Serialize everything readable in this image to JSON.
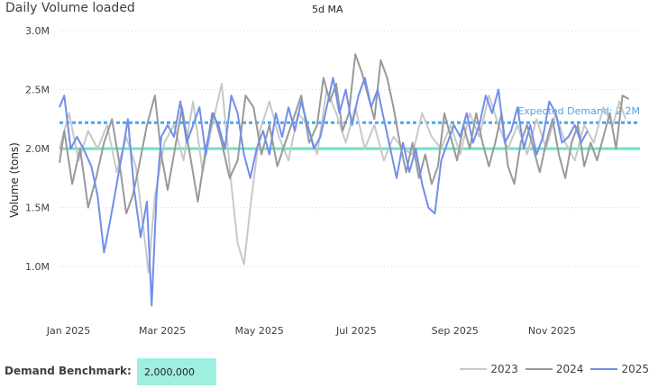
{
  "title": "Daily Volume loaded",
  "subtitle": "5d MA",
  "benchmark": {
    "label": "Demand Benchmark:",
    "value": "2,000,000"
  },
  "colors": {
    "s2023": "#c8c8c8",
    "s2024": "#999999",
    "s2025": "#6f8fea",
    "expected": "#4aa5ea",
    "benchmark": "#6fe0c8",
    "grid": "#d8d8d8"
  },
  "chart_data": {
    "type": "line",
    "ylabel": "Volume (tons)",
    "ylim": [
      0.65,
      3.0
    ],
    "y_unit": "M",
    "y_ticks": [
      {
        "v": 3.0,
        "label": "3.0M"
      },
      {
        "v": 2.5,
        "label": "2.5M"
      },
      {
        "v": 2.0,
        "label": "2.0M"
      },
      {
        "v": 1.5,
        "label": "1.5M"
      },
      {
        "v": 1.0,
        "label": "1.0M"
      }
    ],
    "x_ticks": [
      {
        "doy": 0,
        "label": "Jan 2025"
      },
      {
        "doy": 59,
        "label": "Mar 2025"
      },
      {
        "doy": 120,
        "label": "May 2025"
      },
      {
        "doy": 181,
        "label": "Jul 2025"
      },
      {
        "doy": 243,
        "label": "Sep 2025"
      },
      {
        "doy": 304,
        "label": "Nov 2025"
      }
    ],
    "grid": true,
    "reference_lines": [
      {
        "name": "Expected Demand",
        "label": "Expected Demand: 2.2M",
        "value": 2.22,
        "style": "dashed"
      },
      {
        "name": "Demand Benchmark",
        "value": 2.0,
        "style": "solid"
      }
    ],
    "legend": {
      "position": "bottom-right"
    },
    "series": [
      {
        "name": "2023",
        "color": "#c8c8c8",
        "points": [
          [
            0,
            2.0
          ],
          [
            6,
            2.3
          ],
          [
            12,
            1.9
          ],
          [
            18,
            2.15
          ],
          [
            24,
            2.0
          ],
          [
            30,
            2.2
          ],
          [
            36,
            1.8
          ],
          [
            42,
            2.1
          ],
          [
            48,
            1.85
          ],
          [
            53,
            1.3
          ],
          [
            56,
            0.95
          ],
          [
            60,
            1.6
          ],
          [
            66,
            2.05
          ],
          [
            72,
            2.2
          ],
          [
            78,
            1.9
          ],
          [
            84,
            2.4
          ],
          [
            90,
            1.8
          ],
          [
            96,
            2.2
          ],
          [
            102,
            2.55
          ],
          [
            108,
            1.7
          ],
          [
            112,
            1.2
          ],
          [
            116,
            1.02
          ],
          [
            120,
            1.5
          ],
          [
            126,
            2.15
          ],
          [
            132,
            2.4
          ],
          [
            138,
            2.1
          ],
          [
            144,
            1.9
          ],
          [
            150,
            2.3
          ],
          [
            156,
            2.2
          ],
          [
            162,
            1.95
          ],
          [
            168,
            2.5
          ],
          [
            174,
            2.3
          ],
          [
            180,
            2.05
          ],
          [
            186,
            2.35
          ],
          [
            192,
            2.0
          ],
          [
            198,
            2.2
          ],
          [
            204,
            1.9
          ],
          [
            210,
            2.1
          ],
          [
            216,
            2.0
          ],
          [
            222,
            1.95
          ],
          [
            228,
            2.3
          ],
          [
            234,
            2.1
          ],
          [
            240,
            2.0
          ],
          [
            246,
            2.2
          ],
          [
            252,
            1.95
          ],
          [
            258,
            2.3
          ],
          [
            264,
            2.1
          ],
          [
            270,
            2.45
          ],
          [
            276,
            2.2
          ],
          [
            282,
            2.0
          ],
          [
            288,
            2.2
          ],
          [
            294,
            1.95
          ],
          [
            300,
            2.25
          ],
          [
            306,
            2.0
          ],
          [
            312,
            2.3
          ],
          [
            318,
            2.05
          ],
          [
            324,
            1.9
          ],
          [
            330,
            2.2
          ],
          [
            336,
            2.05
          ],
          [
            342,
            2.35
          ],
          [
            348,
            2.2
          ],
          [
            352,
            2.4
          ],
          [
            356,
            2.25
          ]
        ]
      },
      {
        "name": "2024",
        "color": "#999999",
        "points": [
          [
            0,
            1.88
          ],
          [
            3,
            2.15
          ],
          [
            8,
            1.7
          ],
          [
            13,
            2.0
          ],
          [
            18,
            1.5
          ],
          [
            23,
            1.75
          ],
          [
            28,
            2.05
          ],
          [
            33,
            2.25
          ],
          [
            38,
            1.85
          ],
          [
            42,
            1.45
          ],
          [
            46,
            1.6
          ],
          [
            50,
            1.85
          ],
          [
            55,
            2.2
          ],
          [
            60,
            2.45
          ],
          [
            64,
            1.95
          ],
          [
            68,
            1.65
          ],
          [
            72,
            1.95
          ],
          [
            77,
            2.35
          ],
          [
            82,
            1.95
          ],
          [
            87,
            1.55
          ],
          [
            92,
            2.0
          ],
          [
            97,
            2.3
          ],
          [
            102,
            2.05
          ],
          [
            107,
            1.75
          ],
          [
            112,
            1.9
          ],
          [
            117,
            2.45
          ],
          [
            122,
            2.35
          ],
          [
            127,
            1.95
          ],
          [
            132,
            2.2
          ],
          [
            137,
            1.85
          ],
          [
            142,
            2.05
          ],
          [
            147,
            2.25
          ],
          [
            152,
            2.45
          ],
          [
            157,
            2.05
          ],
          [
            162,
            2.2
          ],
          [
            166,
            2.6
          ],
          [
            170,
            2.4
          ],
          [
            174,
            2.55
          ],
          [
            178,
            2.15
          ],
          [
            182,
            2.3
          ],
          [
            186,
            2.8
          ],
          [
            190,
            2.65
          ],
          [
            194,
            2.45
          ],
          [
            198,
            2.25
          ],
          [
            202,
            2.75
          ],
          [
            206,
            2.6
          ],
          [
            210,
            2.35
          ],
          [
            214,
            2.05
          ],
          [
            218,
            1.8
          ],
          [
            222,
            2.05
          ],
          [
            226,
            1.75
          ],
          [
            230,
            1.95
          ],
          [
            234,
            1.7
          ],
          [
            238,
            1.85
          ],
          [
            242,
            2.3
          ],
          [
            246,
            2.1
          ],
          [
            250,
            1.9
          ],
          [
            254,
            2.2
          ],
          [
            258,
            2.0
          ],
          [
            262,
            2.3
          ],
          [
            266,
            2.05
          ],
          [
            270,
            1.85
          ],
          [
            274,
            2.05
          ],
          [
            278,
            2.3
          ],
          [
            282,
            1.85
          ],
          [
            286,
            1.7
          ],
          [
            290,
            2.05
          ],
          [
            294,
            2.2
          ],
          [
            298,
            2.0
          ],
          [
            302,
            1.8
          ],
          [
            306,
            2.05
          ],
          [
            310,
            2.25
          ],
          [
            314,
            1.95
          ],
          [
            318,
            1.75
          ],
          [
            322,
            2.05
          ],
          [
            326,
            2.2
          ],
          [
            330,
            1.85
          ],
          [
            334,
            2.05
          ],
          [
            338,
            1.9
          ],
          [
            342,
            2.1
          ],
          [
            346,
            2.3
          ],
          [
            350,
            2.0
          ],
          [
            354,
            2.45
          ],
          [
            358,
            2.42
          ]
        ]
      },
      {
        "name": "2025",
        "color": "#6f8fea",
        "points": [
          [
            0,
            2.35
          ],
          [
            3,
            2.45
          ],
          [
            7,
            2.0
          ],
          [
            11,
            2.1
          ],
          [
            15,
            2.0
          ],
          [
            20,
            1.85
          ],
          [
            24,
            1.6
          ],
          [
            28,
            1.12
          ],
          [
            32,
            1.4
          ],
          [
            36,
            1.7
          ],
          [
            40,
            2.0
          ],
          [
            43,
            2.25
          ],
          [
            47,
            1.65
          ],
          [
            51,
            1.25
          ],
          [
            55,
            1.55
          ],
          [
            58,
            0.67
          ],
          [
            61,
            1.6
          ],
          [
            64,
            2.1
          ],
          [
            68,
            2.2
          ],
          [
            72,
            2.1
          ],
          [
            76,
            2.4
          ],
          [
            80,
            2.05
          ],
          [
            84,
            2.2
          ],
          [
            88,
            2.35
          ],
          [
            92,
            1.95
          ],
          [
            96,
            2.3
          ],
          [
            100,
            2.2
          ],
          [
            104,
            2.0
          ],
          [
            108,
            2.45
          ],
          [
            112,
            2.3
          ],
          [
            116,
            1.95
          ],
          [
            120,
            1.75
          ],
          [
            124,
            2.0
          ],
          [
            128,
            2.15
          ],
          [
            132,
            1.95
          ],
          [
            136,
            2.3
          ],
          [
            140,
            2.1
          ],
          [
            144,
            2.35
          ],
          [
            148,
            2.15
          ],
          [
            152,
            2.4
          ],
          [
            156,
            2.2
          ],
          [
            160,
            2.0
          ],
          [
            164,
            2.1
          ],
          [
            168,
            2.35
          ],
          [
            172,
            2.6
          ],
          [
            176,
            2.3
          ],
          [
            180,
            2.5
          ],
          [
            184,
            2.2
          ],
          [
            188,
            2.45
          ],
          [
            192,
            2.6
          ],
          [
            196,
            2.35
          ],
          [
            200,
            2.5
          ],
          [
            204,
            2.25
          ],
          [
            208,
            2.0
          ],
          [
            212,
            1.75
          ],
          [
            216,
            2.05
          ],
          [
            220,
            1.8
          ],
          [
            224,
            2.0
          ],
          [
            228,
            1.7
          ],
          [
            232,
            1.5
          ],
          [
            236,
            1.45
          ],
          [
            240,
            1.9
          ],
          [
            244,
            2.05
          ],
          [
            248,
            2.2
          ],
          [
            252,
            2.1
          ],
          [
            256,
            2.3
          ],
          [
            260,
            2.05
          ],
          [
            264,
            2.2
          ],
          [
            268,
            2.45
          ],
          [
            272,
            2.3
          ],
          [
            276,
            2.5
          ],
          [
            280,
            2.05
          ],
          [
            284,
            2.15
          ],
          [
            288,
            2.35
          ],
          [
            292,
            2.0
          ],
          [
            296,
            2.2
          ],
          [
            300,
            1.95
          ],
          [
            304,
            2.1
          ],
          [
            308,
            2.4
          ],
          [
            312,
            2.3
          ],
          [
            316,
            2.05
          ],
          [
            320,
            2.1
          ],
          [
            324,
            2.2
          ],
          [
            328,
            2.05
          ],
          [
            332,
            2.15
          ]
        ]
      }
    ]
  }
}
